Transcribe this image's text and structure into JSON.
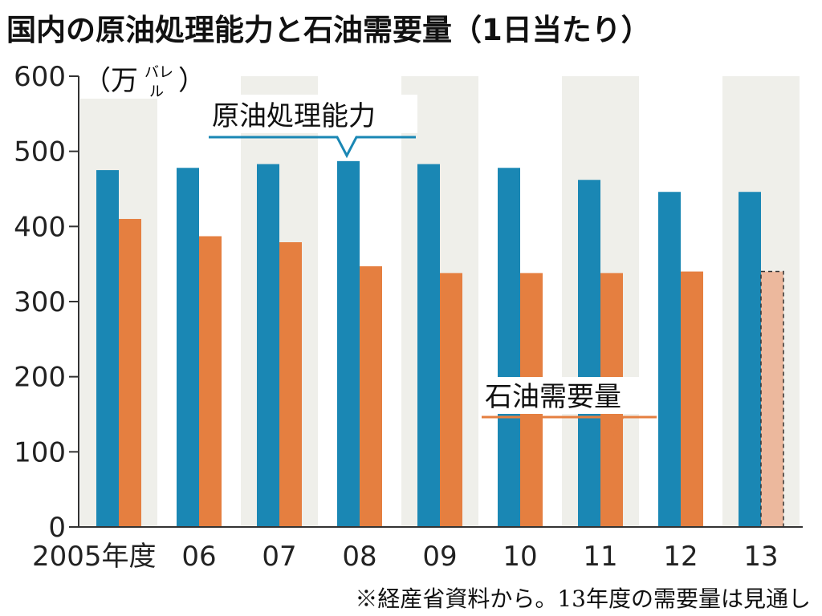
{
  "chart_data": {
    "type": "bar",
    "title": "国内の原油処理能力と石油需要量（1日当たり）",
    "unit_label": {
      "open": "（万",
      "kana_top": "バレ",
      "kana_bottom": "ル",
      "close": "）"
    },
    "categories": [
      "2005年度",
      "06",
      "07",
      "08",
      "09",
      "10",
      "11",
      "12",
      "13"
    ],
    "series": [
      {
        "name": "原油処理能力",
        "color": "#1a87b4",
        "values": [
          475,
          478,
          483,
          487,
          483,
          478,
          462,
          446,
          446
        ]
      },
      {
        "name": "石油需要量",
        "color": "#e57f40",
        "values": [
          410,
          387,
          379,
          347,
          338,
          338,
          338,
          340,
          340
        ]
      }
    ],
    "projected": {
      "category": "13",
      "series": "石油需要量",
      "color": "#ecb89d"
    },
    "yticks": [
      "0",
      "100",
      "200",
      "300",
      "400",
      "500",
      "600"
    ],
    "ylim": [
      0,
      600
    ],
    "band_color": "#efefea",
    "note": "※経産省資料から。13年度の需要量は見通し"
  }
}
